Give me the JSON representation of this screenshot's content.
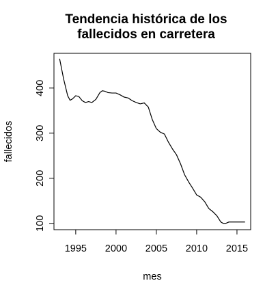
{
  "chart_data": {
    "type": "line",
    "title_lines": [
      "Tendencia histórica de los",
      "fallecidos en carretera"
    ],
    "xlabel": "mes",
    "ylabel": "fallecidos",
    "xlim": [
      1992.3,
      2016.7
    ],
    "ylim": [
      86,
      477
    ],
    "x_ticks": [
      1995,
      2000,
      2005,
      2010,
      2015
    ],
    "y_ticks": [
      100,
      200,
      300,
      400
    ],
    "grid": false,
    "legend": "none",
    "series": [
      {
        "x": [
          1993.0,
          1993.5,
          1994.0,
          1994.3,
          1994.6,
          1995.0,
          1995.4,
          1995.8,
          1996.2,
          1996.6,
          1997.0,
          1997.5,
          1998.0,
          1998.3,
          1998.6,
          1999.0,
          1999.5,
          2000.0,
          2000.5,
          2001.0,
          2001.5,
          2002.0,
          2002.5,
          2003.0,
          2003.5,
          2004.0,
          2004.5,
          2005.0,
          2005.5,
          2006.0,
          2006.5,
          2007.0,
          2007.5,
          2008.0,
          2008.5,
          2009.0,
          2009.5,
          2010.0,
          2010.5,
          2011.0,
          2011.5,
          2012.0,
          2012.5,
          2013.0,
          2013.3,
          2013.6,
          2014.0,
          2014.5,
          2015.0,
          2015.5,
          2016.0
        ],
        "y": [
          465,
          420,
          383,
          373,
          376,
          383,
          381,
          372,
          368,
          370,
          368,
          375,
          390,
          394,
          393,
          390,
          389,
          389,
          385,
          380,
          378,
          372,
          368,
          365,
          367,
          358,
          330,
          310,
          302,
          298,
          280,
          265,
          252,
          232,
          208,
          192,
          178,
          163,
          158,
          148,
          133,
          126,
          117,
          103,
          100,
          100,
          103,
          103,
          103,
          103,
          103
        ]
      }
    ]
  }
}
